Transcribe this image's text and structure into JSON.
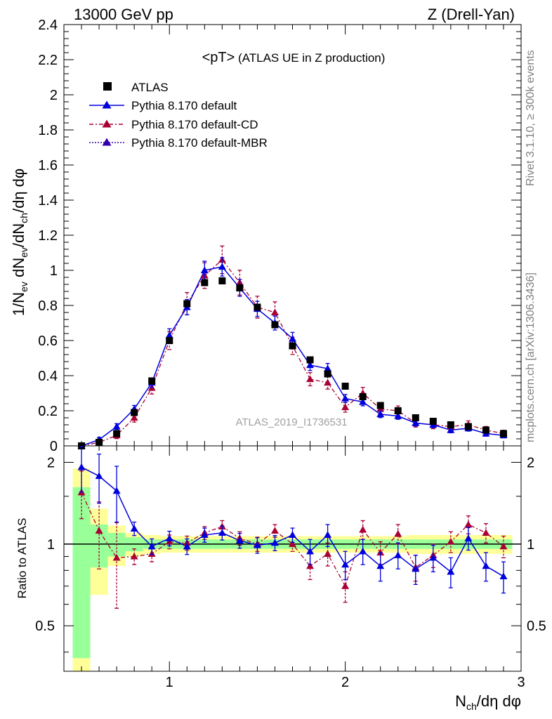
{
  "header": {
    "left": "13000 GeV pp",
    "right": "Z (Drell-Yan)"
  },
  "side": {
    "rivet": "Rivet 3.1.10, ≥ 300k events",
    "mcplots": "mcplots.cern.ch [arXiv:1306.3436]"
  },
  "colors": {
    "atlas": "#000000",
    "default": "#0000dd",
    "cd": "#aa0033",
    "mbr": "#3300aa",
    "band_green": "#99ff99",
    "band_yellow": "#ffff99"
  },
  "chart_data": [
    {
      "type": "scatter",
      "title": "<pT> (ATLAS UE in Z production)",
      "ylabel": "1/N_ev dN_ev/dN_ch/dη dφ",
      "xlabel": "N_ch/dη dφ",
      "analysis_id": "ATLAS_2019_I1736531",
      "xlim": [
        0.4,
        3.0
      ],
      "ylim": [
        0,
        2.4
      ],
      "yticks": [
        "0",
        "0.2",
        "0.4",
        "0.6",
        "0.8",
        "1",
        "1.2",
        "1.4",
        "1.6",
        "1.8",
        "2",
        "2.2",
        "2.4"
      ],
      "x": [
        0.5,
        0.6,
        0.7,
        0.8,
        0.9,
        1.0,
        1.1,
        1.2,
        1.3,
        1.4,
        1.5,
        1.6,
        1.7,
        1.8,
        1.9,
        2.0,
        2.1,
        2.2,
        2.3,
        2.4,
        2.5,
        2.6,
        2.7,
        2.8,
        2.9
      ],
      "series": [
        {
          "name": "ATLAS",
          "values": [
            0.0,
            0.02,
            0.07,
            0.19,
            0.37,
            0.6,
            0.81,
            0.93,
            0.94,
            0.9,
            0.79,
            0.69,
            0.57,
            0.49,
            0.41,
            0.34,
            0.28,
            0.23,
            0.2,
            0.16,
            0.14,
            0.12,
            0.11,
            0.09,
            0.07
          ]
        },
        {
          "name": "Pythia 8.170 default",
          "values": [
            0.0,
            0.035,
            0.11,
            0.21,
            0.36,
            0.63,
            0.79,
            1.0,
            1.02,
            0.9,
            0.78,
            0.7,
            0.61,
            0.46,
            0.44,
            0.27,
            0.25,
            0.18,
            0.17,
            0.13,
            0.12,
            0.09,
            0.1,
            0.07,
            0.06
          ]
        },
        {
          "name": "Pythia 8.170 default-CD",
          "values": [
            0.0,
            0.02,
            0.06,
            0.16,
            0.33,
            0.6,
            0.81,
            0.97,
            1.06,
            0.93,
            0.79,
            0.76,
            0.57,
            0.38,
            0.36,
            0.22,
            0.3,
            0.21,
            0.2,
            0.13,
            0.12,
            0.11,
            0.12,
            0.09,
            0.07
          ]
        },
        {
          "name": "Pythia 8.170 default-MBR",
          "values": [
            0.0,
            0.035,
            0.11,
            0.21,
            0.36,
            0.63,
            0.79,
            1.0,
            1.02,
            0.9,
            0.78,
            0.7,
            0.61,
            0.46,
            0.44,
            0.27,
            0.25,
            0.18,
            0.17,
            0.13,
            0.12,
            0.09,
            0.1,
            0.07,
            0.06
          ]
        }
      ],
      "legend": "top-left"
    },
    {
      "type": "scatter",
      "ylabel": "Ratio to ATLAS",
      "xlim": [
        0.4,
        3.0
      ],
      "ylim": [
        0.34,
        2.3
      ],
      "yticks": [
        "0.5",
        "1",
        "2"
      ],
      "xticks": [
        "1",
        "2",
        "3"
      ],
      "x": [
        0.5,
        0.6,
        0.7,
        0.8,
        0.9,
        1.0,
        1.1,
        1.2,
        1.3,
        1.4,
        1.5,
        1.6,
        1.7,
        1.8,
        1.9,
        2.0,
        2.1,
        2.2,
        2.3,
        2.4,
        2.5,
        2.6,
        2.7,
        2.8,
        2.9
      ],
      "series": [
        {
          "name": "Pythia 8.170 default",
          "values": [
            1.92,
            1.78,
            1.57,
            1.14,
            0.98,
            1.05,
            0.98,
            1.08,
            1.1,
            1.03,
            0.99,
            1.01,
            1.08,
            0.94,
            1.08,
            0.84,
            0.94,
            0.83,
            0.91,
            0.81,
            0.89,
            0.79,
            1.05,
            0.83,
            0.76
          ]
        },
        {
          "name": "Pythia 8.170 default-CD",
          "values": [
            1.55,
            1.12,
            0.89,
            0.9,
            0.92,
            1.02,
            1.01,
            1.1,
            1.16,
            1.05,
            1.0,
            1.12,
            1.0,
            0.83,
            0.92,
            0.7,
            1.13,
            0.93,
            1.09,
            0.82,
            0.91,
            1.02,
            1.18,
            1.1,
            0.98
          ]
        }
      ],
      "band_green_halfwidth": [
        0.62,
        0.18,
        0.1,
        0.06,
        0.04,
        0.04,
        0.04,
        0.04,
        0.04,
        0.04,
        0.04,
        0.04,
        0.04,
        0.04,
        0.04,
        0.04,
        0.04,
        0.04,
        0.04,
        0.04,
        0.04,
        0.04,
        0.04,
        0.04,
        0.04
      ],
      "band_yellow_halfwidth": [
        0.9,
        0.35,
        0.17,
        0.1,
        0.08,
        0.07,
        0.07,
        0.07,
        0.07,
        0.07,
        0.07,
        0.07,
        0.07,
        0.07,
        0.07,
        0.07,
        0.07,
        0.07,
        0.07,
        0.08,
        0.08,
        0.08,
        0.08,
        0.08,
        0.08
      ]
    }
  ]
}
